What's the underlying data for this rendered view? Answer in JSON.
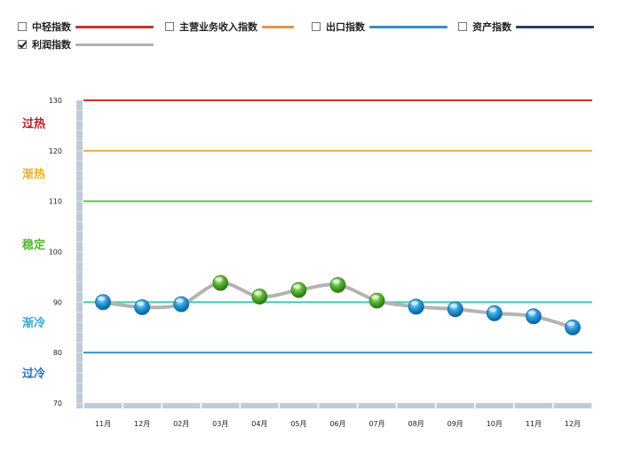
{
  "legend": [
    {
      "label": "中轻指数",
      "checked": false,
      "color": "#c0392b"
    },
    {
      "label": "主营业务收入指数",
      "checked": false,
      "color": "#e8924a"
    },
    {
      "label": "出口指数",
      "checked": false,
      "color": "#3a8fc4"
    },
    {
      "label": "资产指数",
      "checked": false,
      "color": "#2c3e66"
    },
    {
      "label": "利润指数",
      "checked": true,
      "color": "#b0b0b0"
    }
  ],
  "chart_data": {
    "type": "line",
    "categories": [
      "11月",
      "12月",
      "02月",
      "03月",
      "04月",
      "05月",
      "06月",
      "07月",
      "08月",
      "09月",
      "10月",
      "11月",
      "12月"
    ],
    "series": [
      {
        "name": "利润指数",
        "values": [
          90.0,
          89.0,
          89.6,
          93.8,
          91.1,
          92.4,
          93.4,
          90.3,
          89.1,
          88.6,
          87.8,
          87.2,
          85.0
        ]
      }
    ],
    "ylim": [
      70,
      130
    ],
    "yticks": [
      70,
      80,
      90,
      100,
      110,
      120,
      130
    ],
    "reference_lines": [
      {
        "value": 130,
        "color": "#c0392b"
      },
      {
        "value": 120,
        "color": "#f0b040"
      },
      {
        "value": 110,
        "color": "#5cc04a"
      },
      {
        "value": 90,
        "color": "#40c8b8"
      },
      {
        "value": 80,
        "color": "#3a8fd4"
      }
    ],
    "zone_labels": [
      {
        "text": "过热",
        "value": 125.5,
        "color": "#b82020"
      },
      {
        "text": "渐热",
        "value": 115.5,
        "color": "#f0b020"
      },
      {
        "text": "稳定",
        "value": 101.5,
        "color": "#50b830"
      },
      {
        "text": "渐冷",
        "value": 86,
        "color": "#30a8d8"
      },
      {
        "text": "过冷",
        "value": 76,
        "color": "#2a6fb8"
      }
    ],
    "marker_colors": {
      "normal": "#1e90d0",
      "highlight": "#4aa82c"
    },
    "highlight_threshold": 90,
    "grid": false
  }
}
